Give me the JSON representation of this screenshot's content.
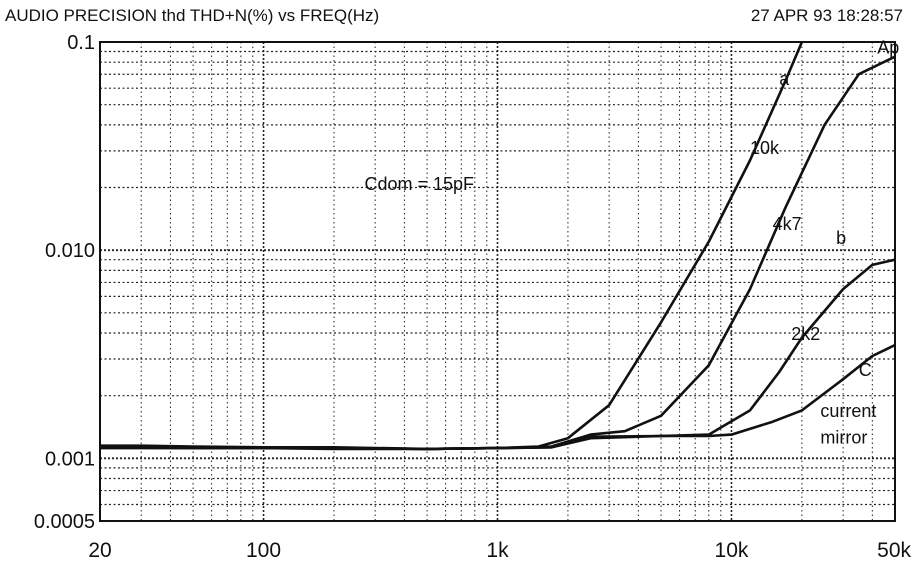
{
  "chart_data": {
    "type": "line",
    "title": "AUDIO PRECISION thd THD+N(%) vs FREQ(Hz)",
    "timestamp": "27 APR 93 18:28:57",
    "xscale": "log",
    "yscale": "log",
    "xlim": [
      20,
      50000
    ],
    "ylim": [
      0.0005,
      0.1
    ],
    "grid": true,
    "x_ticks": [
      {
        "value": 20,
        "label": "20"
      },
      {
        "value": 100,
        "label": "100"
      },
      {
        "value": 1000,
        "label": "1k"
      },
      {
        "value": 10000,
        "label": "10k"
      },
      {
        "value": 50000,
        "label": "50k"
      }
    ],
    "y_ticks": [
      {
        "value": 0.1,
        "label": "0.1"
      },
      {
        "value": 0.01,
        "label": "0.010"
      },
      {
        "value": 0.001,
        "label": "0.001"
      },
      {
        "value": 0.0005,
        "label": "0.0005"
      }
    ],
    "series": [
      {
        "name": "10k",
        "x": [
          20,
          30,
          50,
          100,
          200,
          500,
          1000,
          1500,
          2000,
          3000,
          5000,
          8000,
          12000,
          17000,
          20000
        ],
        "y": [
          0.00115,
          0.00115,
          0.00114,
          0.00113,
          0.00113,
          0.00111,
          0.00112,
          0.00114,
          0.00125,
          0.0018,
          0.0045,
          0.011,
          0.027,
          0.065,
          0.1
        ]
      },
      {
        "name": "4k7",
        "x": [
          20,
          50,
          100,
          200,
          500,
          1000,
          1700,
          2500,
          3500,
          5000,
          8000,
          12000,
          17000,
          25000,
          35000,
          50000
        ],
        "y": [
          0.00113,
          0.00112,
          0.00112,
          0.00112,
          0.00111,
          0.00112,
          0.00114,
          0.0013,
          0.00135,
          0.0016,
          0.0028,
          0.0065,
          0.016,
          0.04,
          0.07,
          0.085
        ]
      },
      {
        "name": "2k2",
        "x": [
          20,
          50,
          100,
          200,
          500,
          1000,
          1700,
          2500,
          5000,
          8000,
          12000,
          16000,
          20000,
          30000,
          40000,
          50000
        ],
        "y": [
          0.00112,
          0.00112,
          0.00112,
          0.00111,
          0.00111,
          0.00112,
          0.00113,
          0.00125,
          0.00128,
          0.0013,
          0.0017,
          0.0026,
          0.0038,
          0.0065,
          0.0085,
          0.009
        ]
      },
      {
        "name": "current mirror",
        "x": [
          20,
          50,
          100,
          200,
          500,
          1000,
          1700,
          2500,
          5000,
          8000,
          10000,
          15000,
          20000,
          30000,
          40000,
          50000
        ],
        "y": [
          0.00113,
          0.00113,
          0.00112,
          0.00112,
          0.00111,
          0.00112,
          0.00113,
          0.00127,
          0.00128,
          0.00128,
          0.0013,
          0.0015,
          0.0017,
          0.0024,
          0.0031,
          0.0035
        ]
      }
    ],
    "annotations": [
      {
        "text": "Ap",
        "x": 42000,
        "y": 0.088
      },
      {
        "text": "a",
        "x": 16000,
        "y": 0.062
      },
      {
        "text": "10k",
        "x": 12000,
        "y": 0.029
      },
      {
        "text": "4k7",
        "x": 15000,
        "y": 0.0125
      },
      {
        "text": "b",
        "x": 28000,
        "y": 0.0107
      },
      {
        "text": "2k2",
        "x": 18000,
        "y": 0.0037
      },
      {
        "text": "C",
        "x": 35000,
        "y": 0.00248
      },
      {
        "text": "current",
        "x": 24000,
        "y": 0.00158
      },
      {
        "text": "mirror",
        "x": 24000,
        "y": 0.00118
      },
      {
        "text": "Cdom = 15pF",
        "x": 270,
        "y": 0.0195
      }
    ],
    "colors": {
      "ink": "#111111",
      "background": "#ffffff"
    }
  }
}
